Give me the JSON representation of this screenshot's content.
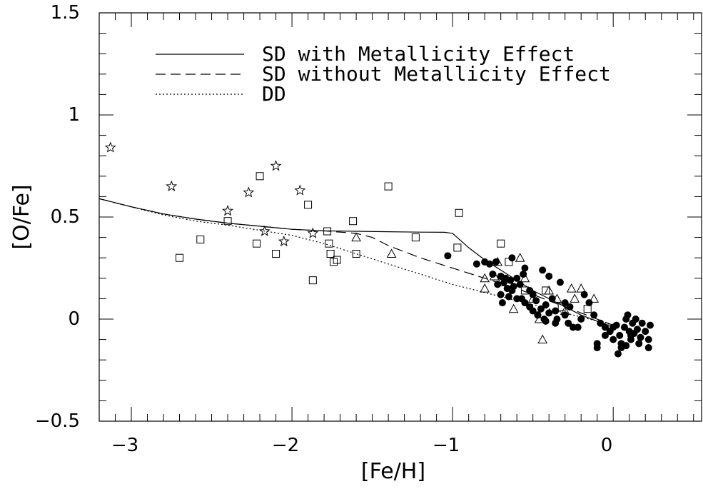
{
  "chart_data": {
    "type": "scatter",
    "title": "",
    "xlabel": "[Fe/H]",
    "ylabel": "[O/Fe]",
    "xlim": [
      -3.2,
      0.55
    ],
    "ylim": [
      -0.5,
      1.5
    ],
    "xticks": [
      -3,
      -2,
      -1,
      0
    ],
    "xtick_labels": [
      "−3",
      "−2",
      "−1",
      "0"
    ],
    "yticks": [
      -0.5,
      0,
      0.5,
      1,
      1.5
    ],
    "ytick_labels": [
      "−0.5",
      "0",
      "0.5",
      "1",
      "1.5"
    ],
    "grid": false,
    "legend_position": "top",
    "lines": [
      {
        "name": "SD with Metallicity Effect",
        "style": "solid",
        "x": [
          -3.2,
          -3.0,
          -2.8,
          -2.6,
          -2.4,
          -2.2,
          -2.0,
          -1.8,
          -1.6,
          -1.4,
          -1.2,
          -1.05,
          -1.0,
          -0.9,
          -0.8,
          -0.7,
          -0.6,
          -0.5,
          -0.4,
          -0.3,
          -0.2,
          -0.1,
          0.0
        ],
        "y": [
          0.59,
          0.55,
          0.515,
          0.49,
          0.47,
          0.455,
          0.44,
          0.432,
          0.43,
          0.428,
          0.426,
          0.425,
          0.42,
          0.35,
          0.29,
          0.24,
          0.19,
          0.14,
          0.1,
          0.06,
          0.02,
          -0.01,
          -0.04
        ]
      },
      {
        "name": "SD without Metallicity Effect",
        "style": "dashed",
        "x": [
          -3.2,
          -3.0,
          -2.8,
          -2.6,
          -2.4,
          -2.2,
          -2.0,
          -1.8,
          -1.6,
          -1.5,
          -1.4,
          -1.2,
          -1.0,
          -0.8,
          -0.6,
          -0.4,
          -0.2,
          0.0
        ],
        "y": [
          0.59,
          0.55,
          0.515,
          0.49,
          0.47,
          0.455,
          0.44,
          0.432,
          0.42,
          0.4,
          0.36,
          0.3,
          0.25,
          0.2,
          0.15,
          0.09,
          0.03,
          -0.03
        ]
      },
      {
        "name": "DD",
        "style": "dotted",
        "x": [
          -3.2,
          -3.0,
          -2.8,
          -2.6,
          -2.4,
          -2.2,
          -2.0,
          -1.8,
          -1.6,
          -1.4,
          -1.2,
          -1.0,
          -0.8,
          -0.6,
          -0.4,
          -0.2,
          0.0
        ],
        "y": [
          0.59,
          0.55,
          0.51,
          0.48,
          0.46,
          0.435,
          0.41,
          0.37,
          0.32,
          0.27,
          0.22,
          0.17,
          0.13,
          0.09,
          0.05,
          0.01,
          -0.03
        ]
      }
    ],
    "markers": [
      {
        "marker": "star",
        "points": [
          [
            -3.13,
            0.84
          ],
          [
            -2.75,
            0.65
          ],
          [
            -2.4,
            0.53
          ],
          [
            -2.27,
            0.62
          ],
          [
            -2.1,
            0.75
          ],
          [
            -2.17,
            0.43
          ],
          [
            -2.05,
            0.38
          ],
          [
            -1.95,
            0.63
          ],
          [
            -1.87,
            0.42
          ]
        ]
      },
      {
        "marker": "open-square",
        "points": [
          [
            -2.7,
            0.3
          ],
          [
            -2.57,
            0.39
          ],
          [
            -2.4,
            0.48
          ],
          [
            -2.2,
            0.7
          ],
          [
            -2.22,
            0.37
          ],
          [
            -2.1,
            0.32
          ],
          [
            -1.9,
            0.56
          ],
          [
            -1.87,
            0.19
          ],
          [
            -1.78,
            0.43
          ],
          [
            -1.77,
            0.37
          ],
          [
            -1.76,
            0.32
          ],
          [
            -1.74,
            0.28
          ],
          [
            -1.72,
            0.29
          ],
          [
            -1.62,
            0.48
          ],
          [
            -1.6,
            0.32
          ],
          [
            -1.4,
            0.65
          ],
          [
            -1.23,
            0.4
          ],
          [
            -0.96,
            0.52
          ],
          [
            -0.97,
            0.35
          ],
          [
            -0.7,
            0.37
          ],
          [
            -0.65,
            0.28
          ],
          [
            -0.55,
            0.14
          ],
          [
            -0.42,
            0.14
          ],
          [
            -0.32,
            0.06
          ],
          [
            -0.16,
            0.05
          ]
        ]
      },
      {
        "marker": "open-triangle",
        "points": [
          [
            -1.6,
            0.4
          ],
          [
            -1.38,
            0.32
          ],
          [
            -0.8,
            0.2
          ],
          [
            -0.74,
            0.21
          ],
          [
            -0.72,
            0.28
          ],
          [
            -0.7,
            0.18
          ],
          [
            -0.62,
            0.05
          ],
          [
            -0.58,
            0.3
          ],
          [
            -0.55,
            0.2
          ],
          [
            -0.5,
            0.1
          ],
          [
            -0.46,
            0.0
          ],
          [
            -0.44,
            -0.1
          ],
          [
            -0.4,
            0.14
          ],
          [
            -0.35,
            0.1
          ],
          [
            -0.3,
            0.04
          ],
          [
            -0.26,
            0.15
          ],
          [
            -0.24,
            0.1
          ],
          [
            -0.2,
            0.15
          ],
          [
            -0.12,
            0.1
          ],
          [
            -0.8,
            0.15
          ]
        ]
      },
      {
        "marker": "filled-circle",
        "points": [
          [
            -1.03,
            0.31
          ],
          [
            -0.85,
            0.27
          ],
          [
            -0.8,
            0.28
          ],
          [
            -0.77,
            0.27
          ],
          [
            -0.75,
            0.22
          ],
          [
            -0.73,
            0.28
          ],
          [
            -0.72,
            0.17
          ],
          [
            -0.7,
            0.21
          ],
          [
            -0.68,
            0.18
          ],
          [
            -0.67,
            0.2
          ],
          [
            -0.66,
            0.15
          ],
          [
            -0.64,
            0.19
          ],
          [
            -0.63,
            0.3
          ],
          [
            -0.62,
            0.16
          ],
          [
            -0.6,
            0.2
          ],
          [
            -0.58,
            0.17
          ],
          [
            -0.56,
            0.22
          ],
          [
            -0.55,
            0.25
          ],
          [
            -0.7,
            0.12
          ],
          [
            -0.69,
            0.08
          ],
          [
            -0.65,
            0.11
          ],
          [
            -0.63,
            0.14
          ],
          [
            -0.6,
            0.1
          ],
          [
            -0.55,
            0.08
          ],
          [
            -0.52,
            0.06
          ],
          [
            -0.5,
            0.12
          ],
          [
            -0.5,
            0.04
          ],
          [
            -0.48,
            0.09
          ],
          [
            -0.47,
            0.02
          ],
          [
            -0.45,
            0.05
          ],
          [
            -0.44,
            0.24
          ],
          [
            -0.43,
            0.0
          ],
          [
            -0.42,
            0.07
          ],
          [
            -0.4,
            0.03
          ],
          [
            -0.4,
            0.21
          ],
          [
            -0.38,
            0.1
          ],
          [
            -0.36,
            0.04
          ],
          [
            -0.35,
            0.0
          ],
          [
            -0.33,
            0.18
          ],
          [
            -0.3,
            0.02
          ],
          [
            -0.28,
            -0.02
          ],
          [
            -0.27,
            0.06
          ],
          [
            -0.25,
            -0.04
          ],
          [
            -0.22,
            -0.04
          ],
          [
            -0.2,
            0.0
          ],
          [
            -0.18,
            0.12
          ],
          [
            -0.15,
            0.08
          ],
          [
            -0.12,
            0.02
          ],
          [
            -0.08,
            -0.02
          ],
          [
            -0.05,
            -0.04
          ],
          [
            -0.02,
            -0.06
          ],
          [
            0.0,
            -0.04
          ],
          [
            0.02,
            -0.03
          ],
          [
            0.04,
            -0.08
          ],
          [
            0.05,
            -0.12
          ],
          [
            0.07,
            -0.04
          ],
          [
            0.08,
            0.0
          ],
          [
            0.09,
            0.02
          ],
          [
            0.1,
            -0.06
          ],
          [
            0.11,
            -0.1
          ],
          [
            0.12,
            -0.02
          ],
          [
            0.13,
            -0.07
          ],
          [
            0.14,
            0.0
          ],
          [
            0.15,
            -0.05
          ],
          [
            0.16,
            -0.12
          ],
          [
            0.17,
            -0.09
          ],
          [
            0.18,
            -0.02
          ],
          [
            0.2,
            -0.06
          ],
          [
            0.22,
            -0.1
          ],
          [
            0.22,
            -0.14
          ],
          [
            0.23,
            -0.03
          ],
          [
            -0.1,
            -0.12
          ],
          [
            -0.1,
            -0.14
          ],
          [
            -0.05,
            -0.08
          ],
          [
            0.0,
            -0.1
          ],
          [
            0.03,
            -0.17
          ],
          [
            0.05,
            -0.14
          ],
          [
            0.08,
            -0.13
          ],
          [
            0.11,
            -0.08
          ],
          [
            0.14,
            0.0
          ],
          [
            -0.3,
            0.08
          ],
          [
            -0.36,
            -0.02
          ],
          [
            -0.42,
            -0.01
          ],
          [
            -0.47,
            0.02
          ],
          [
            -0.52,
            0.14
          ],
          [
            -0.57,
            0.1
          ]
        ]
      }
    ]
  }
}
